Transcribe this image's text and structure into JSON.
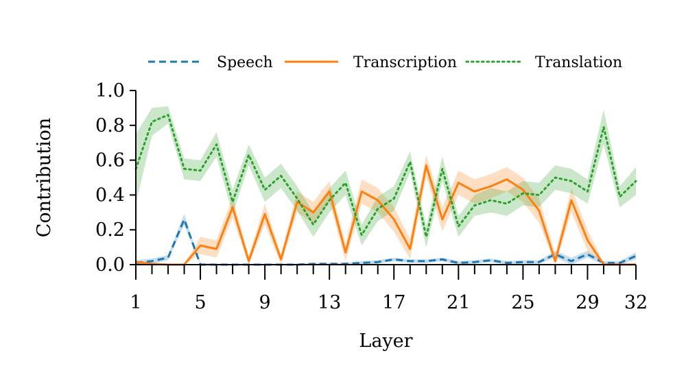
{
  "chart_data": {
    "type": "line",
    "xlabel": "Layer",
    "ylabel": "Contribution",
    "xlim": [
      1,
      32
    ],
    "ylim": [
      0,
      1
    ],
    "xticks": [
      1,
      5,
      9,
      13,
      17,
      21,
      25,
      29,
      32
    ],
    "yticks": [
      "0.0",
      "0.2",
      "0.4",
      "0.6",
      "0.8",
      "1.0"
    ],
    "y_tick_values": [
      0,
      0.2,
      0.4,
      0.6,
      0.8,
      1.0
    ],
    "legend_position": "top",
    "grid": false,
    "x": [
      1,
      2,
      3,
      4,
      5,
      6,
      7,
      8,
      9,
      10,
      11,
      12,
      13,
      14,
      15,
      16,
      17,
      18,
      19,
      20,
      21,
      22,
      23,
      24,
      25,
      26,
      27,
      28,
      29,
      30,
      31,
      32
    ],
    "series": [
      {
        "name": "Speech",
        "color": "#1f77b4",
        "dash": "dashed",
        "values": [
          0.01,
          0.02,
          0.04,
          0.26,
          0.0,
          0.0,
          0.0,
          0.0,
          0.0,
          0.0,
          0.0,
          0.005,
          0.005,
          0.005,
          0.01,
          0.015,
          0.03,
          0.02,
          0.02,
          0.03,
          0.01,
          0.015,
          0.025,
          0.01,
          0.015,
          0.015,
          0.06,
          0.02,
          0.06,
          0.01,
          0.01,
          0.05
        ],
        "band": [
          0.015,
          0.015,
          0.015,
          0.03,
          0.01,
          0.005,
          0.005,
          0.005,
          0.005,
          0.005,
          0.005,
          0.005,
          0.005,
          0.005,
          0.01,
          0.01,
          0.01,
          0.01,
          0.01,
          0.01,
          0.01,
          0.01,
          0.01,
          0.01,
          0.01,
          0.01,
          0.02,
          0.02,
          0.02,
          0.01,
          0.01,
          0.02
        ]
      },
      {
        "name": "Transcription",
        "color": "#ff7f0e",
        "dash": "solid",
        "values": [
          0.015,
          0.005,
          0.0,
          0.0,
          0.11,
          0.09,
          0.33,
          0.02,
          0.29,
          0.03,
          0.36,
          0.3,
          0.42,
          0.07,
          0.42,
          0.37,
          0.26,
          0.09,
          0.57,
          0.26,
          0.47,
          0.42,
          0.45,
          0.49,
          0.43,
          0.31,
          0.02,
          0.37,
          0.14,
          0.0,
          0.0,
          0.0
        ],
        "band": [
          0.01,
          0.005,
          0.005,
          0.005,
          0.05,
          0.05,
          0.06,
          0.03,
          0.06,
          0.03,
          0.06,
          0.06,
          0.06,
          0.05,
          0.07,
          0.07,
          0.07,
          0.06,
          0.06,
          0.07,
          0.07,
          0.07,
          0.07,
          0.07,
          0.07,
          0.07,
          0.04,
          0.07,
          0.06,
          0.01,
          0.01,
          0.01
        ]
      },
      {
        "name": "Translation",
        "color": "#2ca02c",
        "dash": "dotted",
        "values": [
          0.55,
          0.82,
          0.86,
          0.55,
          0.54,
          0.69,
          0.36,
          0.63,
          0.43,
          0.51,
          0.38,
          0.23,
          0.37,
          0.47,
          0.17,
          0.32,
          0.38,
          0.59,
          0.16,
          0.55,
          0.22,
          0.34,
          0.37,
          0.35,
          0.41,
          0.4,
          0.5,
          0.48,
          0.42,
          0.79,
          0.39,
          0.48
        ],
        "band": [
          0.2,
          0.08,
          0.05,
          0.06,
          0.06,
          0.07,
          0.07,
          0.06,
          0.07,
          0.07,
          0.07,
          0.07,
          0.07,
          0.07,
          0.06,
          0.07,
          0.07,
          0.06,
          0.06,
          0.07,
          0.06,
          0.06,
          0.07,
          0.07,
          0.07,
          0.07,
          0.07,
          0.07,
          0.07,
          0.1,
          0.06,
          0.08
        ]
      }
    ]
  }
}
